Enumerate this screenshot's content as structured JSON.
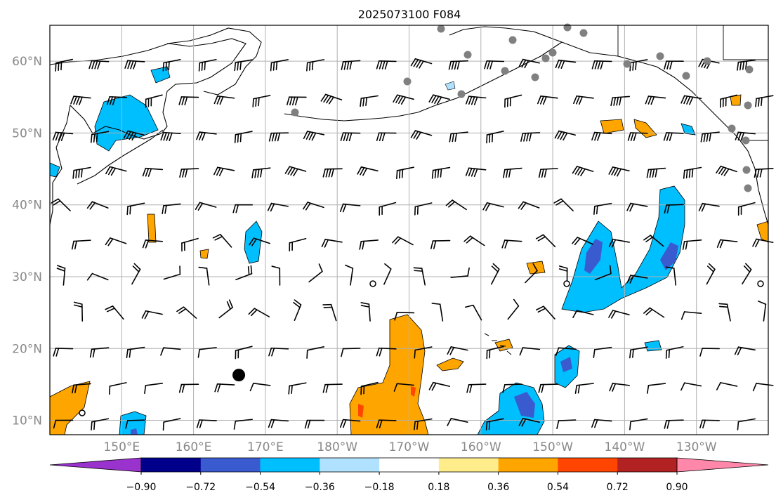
{
  "title": "2025073100 F084",
  "map": {
    "lon_range_east": [
      140,
      240
    ],
    "lat_range": [
      8,
      65
    ],
    "grid": true,
    "grid_color": "#b0b0b0",
    "lat_labels": [
      "10°N",
      "20°N",
      "30°N",
      "40°N",
      "50°N",
      "60°N"
    ],
    "lon_labels": [
      "150°E",
      "160°E",
      "170°E",
      "180°W",
      "170°W",
      "160°W",
      "150°W",
      "140°W",
      "130°W"
    ],
    "label_color": "#888888",
    "land_color": "#ffffff",
    "coastline_color": "#000000",
    "wind_barbs": "regular 5° grid of black wind barbs",
    "marker": {
      "lon": 166.3,
      "lat": 16.3,
      "label": ""
    }
  },
  "colorbar": {
    "tick_labels": [
      "−0.90",
      "−0.72",
      "−0.54",
      "−0.36",
      "−0.18",
      "0.18",
      "0.36",
      "0.54",
      "0.72",
      "0.90"
    ],
    "colors": [
      "#9a32cd",
      "#00008b",
      "#3a5bd0",
      "#00bfff",
      "#b0e2ff",
      "#ffffff",
      "#ffec8b",
      "#ffa500",
      "#ff4500",
      "#b22222",
      "#ff88aa"
    ],
    "extend": "both"
  },
  "shaded_field_colors": {
    "neg_strong": "#3a5bd0",
    "neg_mid": "#00bfff",
    "pos_mid": "#ffa500",
    "pos_strong": "#ff4500"
  },
  "station_dot_color": "#808080"
}
